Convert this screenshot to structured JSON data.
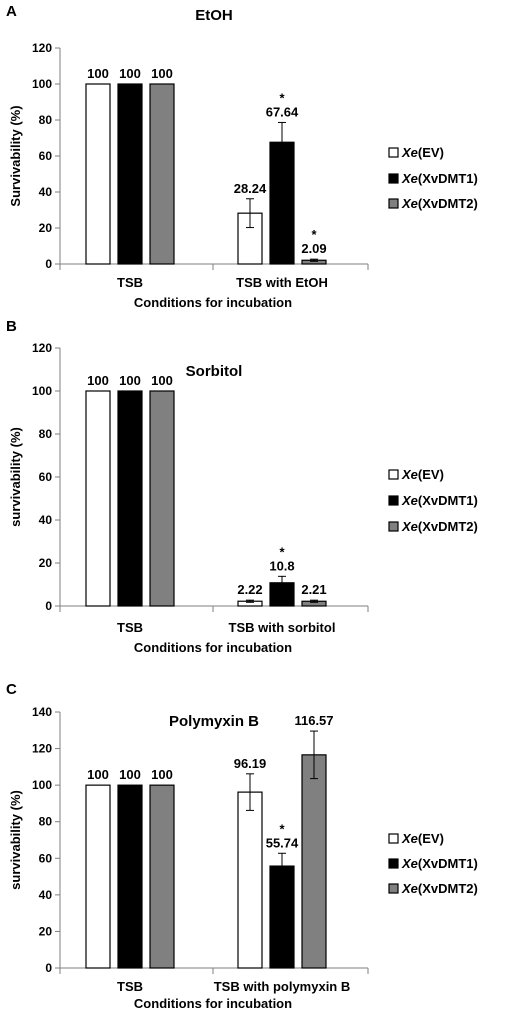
{
  "chart_data": [
    {
      "panel_label": "A",
      "type": "bar",
      "title": "EtOH",
      "xlabel": "Conditions  for incubation",
      "ylabel": "Survivability (%)",
      "ylim": [
        0,
        120
      ],
      "yticks": [
        "0",
        "20",
        "40",
        "60",
        "80",
        "100",
        "120"
      ],
      "categories": [
        "TSB",
        "TSB with EtOH"
      ],
      "series": [
        {
          "name": "Xe(EV)",
          "values": [
            100,
            28.24
          ],
          "errors": [
            0,
            8
          ],
          "value_labels": [
            "100",
            "28.24"
          ],
          "sig": [
            false,
            false
          ]
        },
        {
          "name": "Xe(XvDMT1)",
          "values": [
            100,
            67.64
          ],
          "errors": [
            0,
            11
          ],
          "value_labels": [
            "100",
            "67.64"
          ],
          "sig": [
            false,
            true
          ]
        },
        {
          "name": "Xe(XvDMT2)",
          "values": [
            100,
            2.09
          ],
          "errors": [
            0,
            0.6
          ],
          "value_labels": [
            "100",
            "2.09"
          ],
          "sig": [
            false,
            true
          ]
        }
      ],
      "grid": false,
      "legend_position": "right"
    },
    {
      "panel_label": "B",
      "type": "bar",
      "title": "Sorbitol",
      "xlabel": "Conditions  for incubation",
      "ylabel": "survivability (%)",
      "ylim": [
        0,
        120
      ],
      "yticks": [
        "0",
        "20",
        "40",
        "60",
        "80",
        "100",
        "120"
      ],
      "categories": [
        "TSB",
        "TSB with sorbitol"
      ],
      "series": [
        {
          "name": "Xe(EV)",
          "values": [
            100,
            2.22
          ],
          "errors": [
            0,
            0.5
          ],
          "value_labels": [
            "100",
            "2.22"
          ],
          "sig": [
            false,
            false
          ]
        },
        {
          "name": "Xe(XvDMT1)",
          "values": [
            100,
            10.8
          ],
          "errors": [
            0,
            3
          ],
          "value_labels": [
            "100",
            "10.8"
          ],
          "sig": [
            false,
            true
          ]
        },
        {
          "name": "Xe(XvDMT2)",
          "values": [
            100,
            2.21
          ],
          "errors": [
            0,
            0.5
          ],
          "value_labels": [
            "100",
            "2.21"
          ],
          "sig": [
            false,
            false
          ]
        }
      ],
      "grid": false,
      "legend_position": "right"
    },
    {
      "panel_label": "C",
      "type": "bar",
      "title": "Polymyxin B",
      "xlabel": "Conditions  for incubation",
      "ylabel": "survivability (%)",
      "ylim": [
        0,
        140
      ],
      "yticks": [
        "0",
        "20",
        "40",
        "60",
        "80",
        "100",
        "120",
        "140"
      ],
      "categories": [
        "TSB",
        "TSB with polymyxin  B"
      ],
      "series": [
        {
          "name": "Xe(EV)",
          "values": [
            100,
            96.19
          ],
          "errors": [
            0,
            10
          ],
          "value_labels": [
            "100",
            "96.19"
          ],
          "sig": [
            false,
            false
          ]
        },
        {
          "name": "Xe(XvDMT1)",
          "values": [
            100,
            55.74
          ],
          "errors": [
            0,
            7
          ],
          "value_labels": [
            "100",
            "55.74"
          ],
          "sig": [
            false,
            true
          ]
        },
        {
          "name": "Xe(XvDMT2)",
          "values": [
            100,
            116.57
          ],
          "errors": [
            0,
            13
          ],
          "value_labels": [
            "100",
            "116.57"
          ],
          "sig": [
            false,
            false
          ]
        }
      ],
      "grid": false,
      "legend_position": "right"
    }
  ],
  "styles": {
    "series_fills": [
      "#ffffff",
      "#000000",
      "#808080"
    ],
    "axis_color": "#7f7f7f",
    "bar_stroke": "#000000",
    "sig_marker": "*"
  }
}
